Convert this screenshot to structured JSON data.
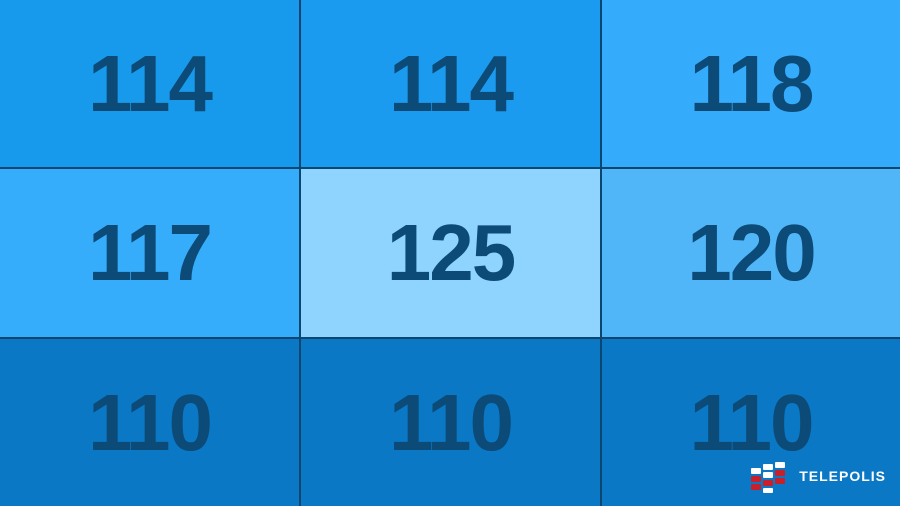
{
  "chart_data": {
    "type": "heatmap",
    "rows": 3,
    "cols": 3,
    "values": [
      [
        114,
        114,
        118
      ],
      [
        117,
        125,
        120
      ],
      [
        110,
        110,
        110
      ]
    ],
    "cell_colors": [
      [
        "#179aeb",
        "#1b9bef",
        "#34acfb"
      ],
      [
        "#36adfb",
        "#8fd3ff",
        "#50b6f8"
      ],
      [
        "#0a78c4",
        "#0a78c4",
        "#0a78c4"
      ]
    ],
    "text_color": "#0c4a78",
    "grid_line_color": "#0b4670"
  },
  "logo": {
    "text": "TELEPOLIS"
  }
}
